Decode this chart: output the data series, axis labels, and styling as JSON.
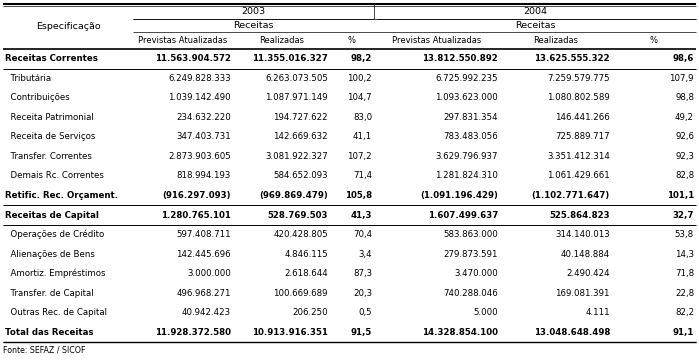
{
  "fonte": "Fonte: SEFAZ / SICOF",
  "rows": [
    {
      "label": "Receitas Correntes",
      "bold": true,
      "v1": "11.563.904.572",
      "v2": "11.355.016.327",
      "v3": "98,2",
      "v4": "13.812.550.892",
      "v5": "13.625.555.322",
      "v6": "98,6"
    },
    {
      "label": "  Tributária",
      "bold": false,
      "v1": "6.249.828.333",
      "v2": "6.263.073.505",
      "v3": "100,2",
      "v4": "6.725.992.235",
      "v5": "7.259.579.775",
      "v6": "107,9"
    },
    {
      "label": "  Contribuições",
      "bold": false,
      "v1": "1.039.142.490",
      "v2": "1.087.971.149",
      "v3": "104,7",
      "v4": "1.093.623.000",
      "v5": "1.080.802.589",
      "v6": "98,8"
    },
    {
      "label": "  Receita Patrimonial",
      "bold": false,
      "v1": "234.632.220",
      "v2": "194.727.622",
      "v3": "83,0",
      "v4": "297.831.354",
      "v5": "146.441.266",
      "v6": "49,2"
    },
    {
      "label": "  Receita de Serviços",
      "bold": false,
      "v1": "347.403.731",
      "v2": "142.669.632",
      "v3": "41,1",
      "v4": "783.483.056",
      "v5": "725.889.717",
      "v6": "92,6"
    },
    {
      "label": "  Transfer. Correntes",
      "bold": false,
      "v1": "2.873.903.605",
      "v2": "3.081.922.327",
      "v3": "107,2",
      "v4": "3.629.796.937",
      "v5": "3.351.412.314",
      "v6": "92,3"
    },
    {
      "label": "  Demais Rc. Correntes",
      "bold": false,
      "v1": "818.994.193",
      "v2": "584.652.093",
      "v3": "71,4",
      "v4": "1.281.824.310",
      "v5": "1.061.429.661",
      "v6": "82,8"
    },
    {
      "label": "Retific. Rec. Orçament.",
      "bold": true,
      "v1": "(916.297.093)",
      "v2": "(969.869.479)",
      "v3": "105,8",
      "v4": "(1.091.196.429)",
      "v5": "(1.102.771.647)",
      "v6": "101,1"
    },
    {
      "label": "Receitas de Capital",
      "bold": true,
      "v1": "1.280.765.101",
      "v2": "528.769.503",
      "v3": "41,3",
      "v4": "1.607.499.637",
      "v5": "525.864.823",
      "v6": "32,7"
    },
    {
      "label": "  Operações de Crédito",
      "bold": false,
      "v1": "597.408.711",
      "v2": "420.428.805",
      "v3": "70,4",
      "v4": "583.863.000",
      "v5": "314.140.013",
      "v6": "53,8"
    },
    {
      "label": "  Alienações de Bens",
      "bold": false,
      "v1": "142.445.696",
      "v2": "4.846.115",
      "v3": "3,4",
      "v4": "279.873.591",
      "v5": "40.148.884",
      "v6": "14,3"
    },
    {
      "label": "  Amortiz. Empréstimos",
      "bold": false,
      "v1": "3.000.000",
      "v2": "2.618.644",
      "v3": "87,3",
      "v4": "3.470.000",
      "v5": "2.490.424",
      "v6": "71,8"
    },
    {
      "label": "  Transfer. de Capital",
      "bold": false,
      "v1": "496.968.271",
      "v2": "100.669.689",
      "v3": "20,3",
      "v4": "740.288.046",
      "v5": "169.081.391",
      "v6": "22,8"
    },
    {
      "label": "  Outras Rec. de Capital",
      "bold": false,
      "v1": "40.942.423",
      "v2": "206.250",
      "v3": "0,5",
      "v4": "5.000",
      "v5": "4.111",
      "v6": "82,2"
    },
    {
      "label": "Total das Receitas",
      "bold": true,
      "v1": "11.928.372.580",
      "v2": "10.913.916.351",
      "v3": "91,5",
      "v4": "14.328.854.100",
      "v5": "13.048.648.498",
      "v6": "91,1"
    }
  ],
  "bg_color": "#ffffff",
  "text_color": "#000000",
  "font_size": 6.2,
  "header_font_size": 6.8
}
